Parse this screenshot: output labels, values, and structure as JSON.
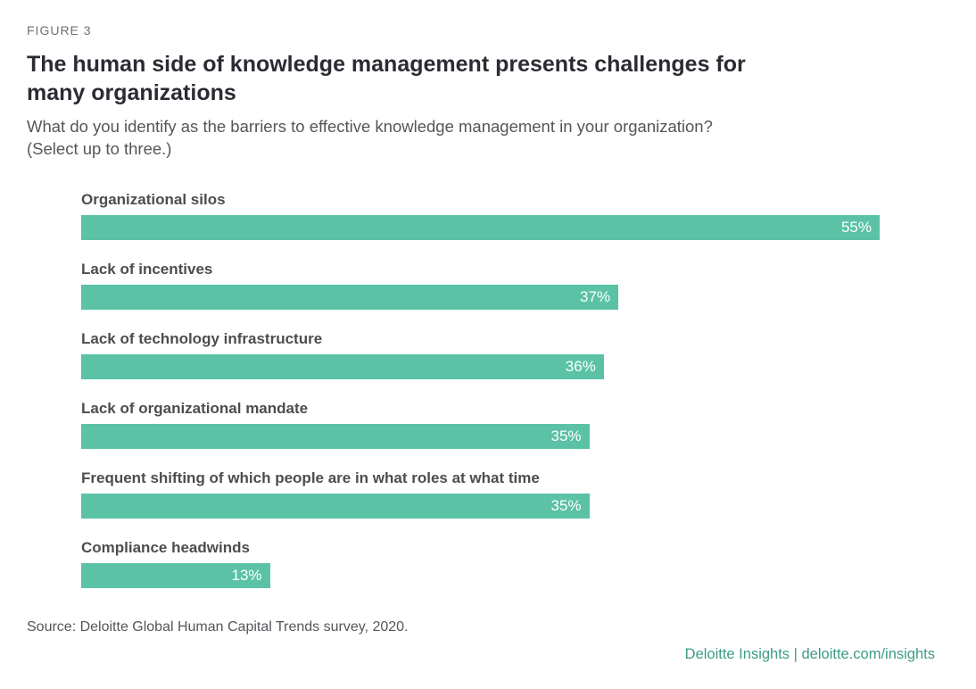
{
  "figure_label": "FIGURE 3",
  "title": "The human side of knowledge management presents challenges for many organizations",
  "subtitle_line1": "What do you identify as the barriers to effective knowledge management in your organization?",
  "subtitle_line2": "(Select up to three.)",
  "source": "Source: Deloitte Global Human Capital Trends survey, 2020.",
  "footer_brand": "Deloitte Insights | deloitte.com/insights",
  "colors": {
    "bar": "#5bc2a6",
    "bar_value_text": "#ffffff",
    "title_text": "#2b2b33",
    "body_text": "#54565a",
    "footer_brand_text": "#3c9c85"
  },
  "chart_data": {
    "type": "bar",
    "orientation": "horizontal",
    "title": "The human side of knowledge management presents challenges for many organizations",
    "question": "What do you identify as the barriers to effective knowledge management in your organization? (Select up to three.)",
    "categories": [
      "Organizational silos",
      "Lack of incentives",
      "Lack of technology infrastructure",
      "Lack of organizational mandate",
      "Frequent shifting of which people are in what roles at what time",
      "Compliance headwinds"
    ],
    "values": [
      55,
      37,
      36,
      35,
      35,
      13
    ],
    "value_labels": [
      "55%",
      "37%",
      "36%",
      "35%",
      "35%",
      "13%"
    ],
    "unit": "%",
    "xlim": [
      0,
      55
    ],
    "grid": false,
    "legend": false,
    "value_label_position": "inside-end"
  }
}
